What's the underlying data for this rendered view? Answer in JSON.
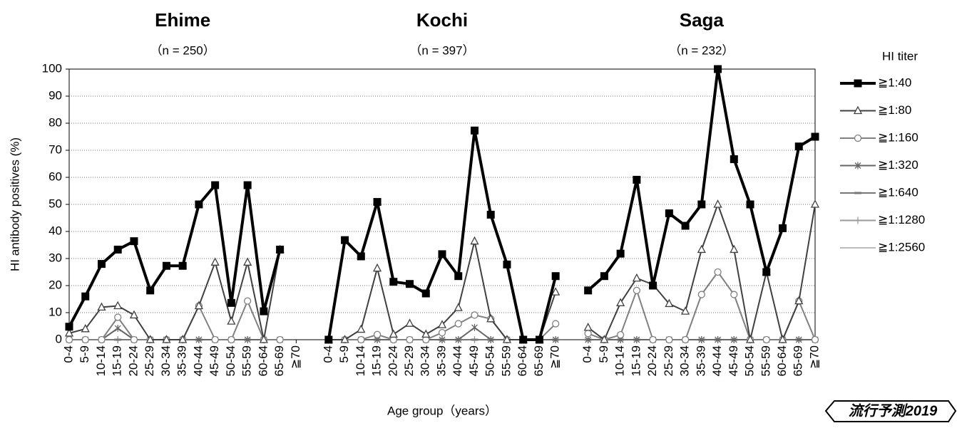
{
  "chart_data": {
    "type": "line",
    "groups": [
      {
        "title": "Ehime",
        "subtitle": "（n = 250）"
      },
      {
        "title": "Kochi",
        "subtitle": "（n = 397）"
      },
      {
        "title": "Saga",
        "subtitle": "（n = 232）"
      }
    ],
    "ylabel": "HI antibody positives (%)",
    "xlabel": "Age group（years）",
    "legend_title": "HI titer",
    "legend": "right",
    "grid": true,
    "watermark": "流行予測2019",
    "ylim": [
      0,
      100
    ],
    "yticks": [
      0,
      10,
      20,
      30,
      40,
      50,
      60,
      70,
      80,
      90,
      100
    ],
    "categories": [
      "0-4",
      "5-9",
      "10-14",
      "15-19",
      "20-24",
      "25-29",
      "30-34",
      "35-39",
      "40-44",
      "45-49",
      "50-54",
      "55-59",
      "60-64",
      "65-69",
      "≧70",
      null,
      "0-4",
      "5-9",
      "10-14",
      "15-19",
      "20-24",
      "25-29",
      "30-34",
      "35-39",
      "40-44",
      "45-49",
      "50-54",
      "55-59",
      "60-64",
      "65-69",
      "≧70",
      null,
      "0-4",
      "5-9",
      "10-14",
      "15-19",
      "20-24",
      "25-29",
      "30-34",
      "35-39",
      "40-44",
      "45-49",
      "50-54",
      "55-59",
      "60-64",
      "65-69",
      "≧70"
    ],
    "series": [
      {
        "name": "≧1:40",
        "color": "#000000",
        "width": 4,
        "marker": "square",
        "values": [
          4.8,
          16,
          28,
          33.3,
          36.4,
          18.2,
          27.3,
          27.3,
          50,
          57.1,
          13.6,
          57.1,
          10.5,
          33.3,
          null,
          null,
          0,
          36.8,
          30.8,
          50.9,
          21.4,
          20.6,
          17.1,
          31.6,
          23.5,
          77.3,
          46.2,
          27.8,
          0,
          0,
          23.5,
          null,
          18.2,
          23.5,
          31.8,
          59.1,
          20,
          46.7,
          42.1,
          50,
          100,
          66.7,
          50,
          25,
          41.2,
          71.4,
          75
        ]
      },
      {
        "name": "≧1:80",
        "color": "#404040",
        "width": 2,
        "marker": "triangle",
        "values": [
          2.4,
          4,
          12,
          12.5,
          9.1,
          0,
          0,
          0,
          12.5,
          28.6,
          6.8,
          28.6,
          0,
          33.3,
          null,
          null,
          0,
          0,
          3.8,
          26.4,
          2,
          6,
          2,
          5.5,
          11.8,
          36.4,
          7.7,
          0,
          0,
          0,
          17.6,
          null,
          4.5,
          0,
          13.6,
          22.7,
          20.4,
          13.3,
          10.5,
          33.3,
          50,
          33.3,
          0,
          25,
          0,
          14.3,
          50
        ]
      },
      {
        "name": "≧1:160",
        "color": "#808080",
        "width": 2,
        "marker": "circle",
        "values": [
          0,
          0,
          0,
          8.3,
          0,
          0,
          0,
          0,
          12.5,
          0,
          0,
          14.3,
          0,
          0,
          null,
          null,
          0,
          0,
          0,
          1.9,
          0,
          0,
          0,
          2.6,
          5.9,
          9.1,
          7.7,
          0,
          0,
          0,
          5.9,
          null,
          2.3,
          0,
          1.8,
          18.2,
          0,
          0,
          0,
          16.7,
          25,
          16.7,
          0,
          0,
          0,
          14.3,
          0
        ]
      },
      {
        "name": "≧1:320",
        "color": "#666666",
        "width": 2,
        "marker": "asterisk",
        "values": [
          0,
          0,
          0,
          4.2,
          0,
          0,
          0,
          0,
          0,
          0,
          0,
          0,
          0,
          0,
          null,
          null,
          0,
          0,
          0,
          0,
          0,
          0,
          0,
          0,
          0,
          4.5,
          0,
          0,
          0,
          0,
          0,
          null,
          0,
          0,
          0,
          0,
          0,
          0,
          0,
          0,
          0,
          0,
          0,
          0,
          0,
          0,
          0
        ]
      },
      {
        "name": "≧1:640",
        "color": "#777777",
        "width": 2,
        "marker": "dash",
        "values": [
          0,
          0,
          0,
          0,
          0,
          0,
          0,
          0,
          0,
          0,
          0,
          0,
          0,
          0,
          null,
          null,
          0,
          0,
          0,
          0,
          0,
          0,
          0,
          0,
          0,
          0,
          0,
          0,
          0,
          0,
          0,
          null,
          0,
          0,
          0,
          0,
          0,
          0,
          0,
          0,
          0,
          0,
          0,
          0,
          0,
          0,
          0
        ]
      },
      {
        "name": "≧1:1280",
        "color": "#999999",
        "width": 2,
        "marker": "plus",
        "values": [
          0,
          0,
          0,
          0,
          0,
          0,
          0,
          0,
          0,
          0,
          0,
          0,
          0,
          0,
          null,
          null,
          0,
          0,
          0,
          0,
          0,
          0,
          0,
          0,
          0,
          0,
          0,
          0,
          0,
          0,
          0,
          null,
          0,
          0,
          0,
          0,
          0,
          0,
          0,
          0,
          0,
          0,
          0,
          0,
          0,
          0,
          0
        ]
      },
      {
        "name": "≧1:2560",
        "color": "#bbbbbb",
        "width": 2,
        "marker": "none",
        "values": [
          0,
          0,
          0,
          0,
          0,
          0,
          0,
          0,
          0,
          0,
          0,
          0,
          0,
          0,
          null,
          null,
          0,
          0,
          0,
          0,
          0,
          0,
          0,
          0,
          0,
          0,
          0,
          0,
          0,
          0,
          0,
          null,
          0,
          0,
          0,
          0,
          0,
          0,
          0,
          0,
          0,
          0,
          0,
          0,
          0,
          0,
          0
        ]
      }
    ]
  }
}
